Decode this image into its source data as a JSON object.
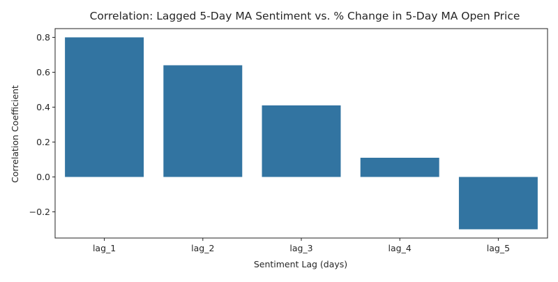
{
  "chart_data": {
    "type": "bar",
    "title": "Correlation: Lagged 5-Day MA Sentiment vs. % Change in 5-Day MA Open Price",
    "xlabel": "Sentiment Lag (days)",
    "ylabel": "Correlation Coefficient",
    "categories": [
      "lag_1",
      "lag_2",
      "lag_3",
      "lag_4",
      "lag_5"
    ],
    "values": [
      0.8,
      0.64,
      0.41,
      0.11,
      -0.3
    ],
    "ylim": [
      -0.35,
      0.85
    ],
    "yticks": [
      -0.2,
      0.0,
      0.2,
      0.4,
      0.6,
      0.8
    ],
    "ytick_labels": [
      "−0.2",
      "0.0",
      "0.2",
      "0.4",
      "0.6",
      "0.8"
    ],
    "bar_color": "#3274a1",
    "grid": false,
    "legend": false
  }
}
